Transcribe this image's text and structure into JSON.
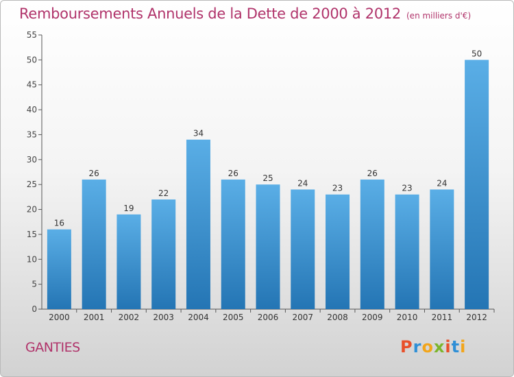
{
  "title": "Remboursements Annuels de la Dette de 2000 à 2012",
  "unit": "(en milliers d'€)",
  "commune": "GANTIES",
  "logo": {
    "letters": [
      "P",
      "r",
      "o",
      "x",
      "i",
      "t",
      "i"
    ],
    "colors": [
      "#e8502a",
      "#2f8fd6",
      "#f2a51a",
      "#7cb52c",
      "#e8502a",
      "#2f8fd6",
      "#f2a51a"
    ]
  },
  "colors": {
    "bar_top": "#5aaee6",
    "bar_bottom": "#2475b4",
    "title": "#b0336a",
    "axis": "#555555"
  },
  "chart_data": {
    "type": "bar",
    "title": "Remboursements Annuels de la Dette de 2000 à 2012",
    "xlabel": "",
    "ylabel": "",
    "categories": [
      "2000",
      "2001",
      "2002",
      "2003",
      "2004",
      "2005",
      "2006",
      "2007",
      "2008",
      "2009",
      "2010",
      "2011",
      "2012"
    ],
    "values": [
      16,
      26,
      19,
      22,
      34,
      26,
      25,
      24,
      23,
      26,
      23,
      24,
      50
    ],
    "ylim": [
      0,
      55
    ],
    "yticks": [
      0,
      5,
      10,
      15,
      20,
      25,
      30,
      35,
      40,
      45,
      50,
      55
    ],
    "grid": false,
    "legend": "none"
  }
}
